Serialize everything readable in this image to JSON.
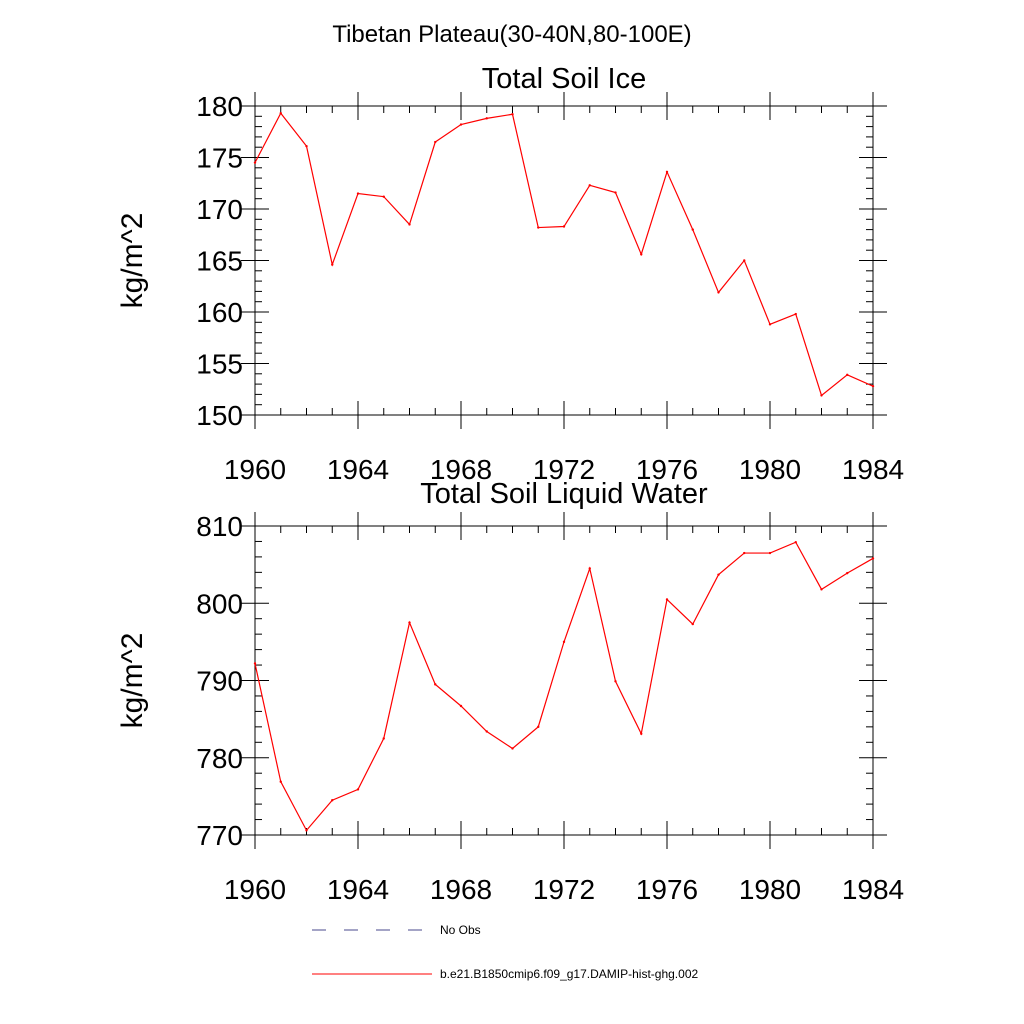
{
  "figure": {
    "suptitle": "Tibetan Plateau(30-40N,80-100E)"
  },
  "legend": [
    {
      "label": "No Obs",
      "style": "dashed",
      "color": "#4a4a8c"
    },
    {
      "label": "b.e21.B1850cmip6.f09_g17.DAMIP-hist-ghg.002",
      "style": "solid",
      "color": "#ff0000"
    }
  ],
  "chart_data": [
    {
      "type": "line",
      "title": "Total Soil Ice",
      "xlabel": "",
      "ylabel": "kg/m^2",
      "xlim": [
        1960,
        1984
      ],
      "ylim": [
        150,
        180
      ],
      "xticks": [
        1960,
        1964,
        1968,
        1972,
        1976,
        1980,
        1984
      ],
      "yticks": [
        150,
        155,
        160,
        165,
        170,
        175,
        180
      ],
      "x": [
        1960,
        1961,
        1962,
        1963,
        1964,
        1965,
        1966,
        1967,
        1968,
        1969,
        1970,
        1971,
        1972,
        1973,
        1974,
        1975,
        1976,
        1977,
        1978,
        1979,
        1980,
        1981,
        1982,
        1983,
        1984
      ],
      "series": [
        {
          "color": "#ff0000",
          "values": [
            174.5,
            179.3,
            176.1,
            164.6,
            171.5,
            171.2,
            168.5,
            176.5,
            178.2,
            178.8,
            179.2,
            168.2,
            168.3,
            172.3,
            171.6,
            165.6,
            173.6,
            168.0,
            161.9,
            165.0,
            158.8,
            159.8,
            151.9,
            153.9,
            152.8
          ]
        }
      ]
    },
    {
      "type": "line",
      "title": "Total Soil Liquid Water",
      "xlabel": "",
      "ylabel": "kg/m^2",
      "xlim": [
        1960,
        1984
      ],
      "ylim": [
        770,
        810
      ],
      "xticks": [
        1960,
        1964,
        1968,
        1972,
        1976,
        1980,
        1984
      ],
      "yticks": [
        770,
        780,
        790,
        800,
        810
      ],
      "x": [
        1960,
        1961,
        1962,
        1963,
        1964,
        1965,
        1966,
        1967,
        1968,
        1969,
        1970,
        1971,
        1972,
        1973,
        1974,
        1975,
        1976,
        1977,
        1978,
        1979,
        1980,
        1981,
        1982,
        1983,
        1984
      ],
      "series": [
        {
          "color": "#ff0000",
          "values": [
            792.2,
            776.9,
            770.6,
            774.5,
            775.9,
            782.5,
            797.5,
            789.5,
            786.7,
            783.4,
            781.2,
            784.0,
            795.0,
            804.5,
            789.9,
            783.1,
            800.5,
            797.3,
            803.7,
            806.5,
            806.5,
            807.9,
            801.8,
            803.9,
            805.8
          ]
        }
      ]
    }
  ]
}
